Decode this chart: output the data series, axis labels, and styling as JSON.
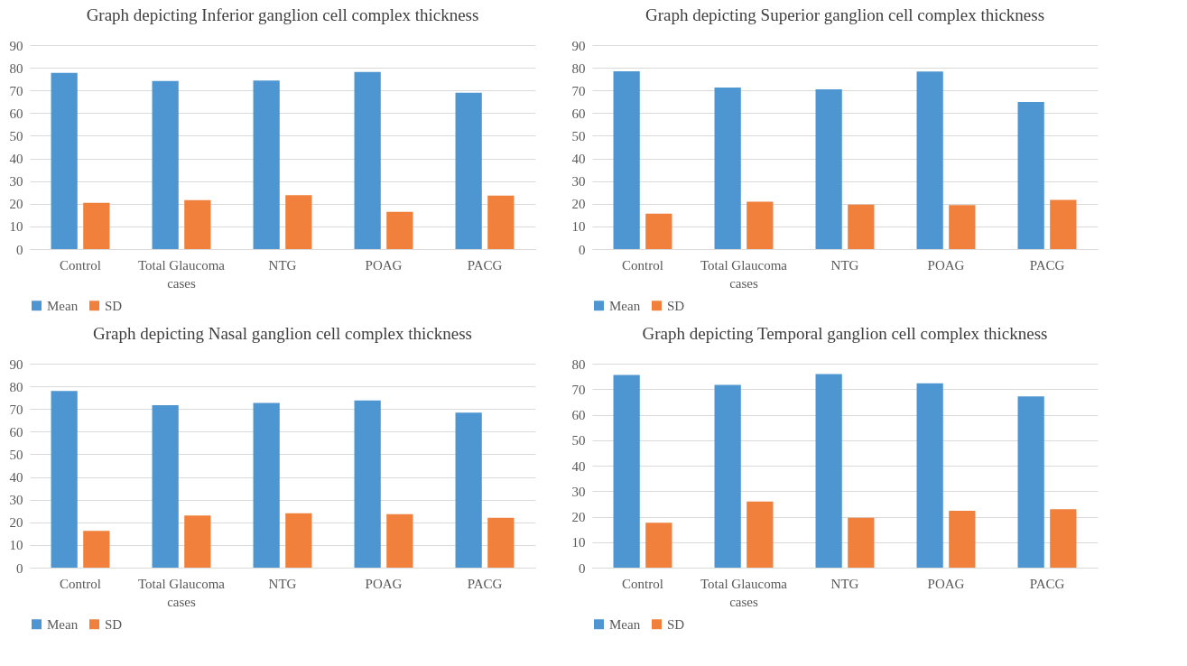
{
  "chart_data": [
    {
      "type": "bar",
      "title": "Graph depicting  Inferior ganglion cell complex thickness",
      "categories": [
        "Control",
        "Total Glaucoma cases",
        "NTG",
        "POAG",
        "PACG"
      ],
      "series": [
        {
          "name": "Mean",
          "color": "#4e96d1",
          "values": [
            77.8,
            74.2,
            74.4,
            78.2,
            69.0
          ]
        },
        {
          "name": "SD",
          "color": "#f0803c",
          "values": [
            20.4,
            21.6,
            23.8,
            16.4,
            23.6
          ]
        }
      ],
      "ylim": [
        0,
        90
      ],
      "yticks": [
        0,
        10,
        20,
        30,
        40,
        50,
        60,
        70,
        80,
        90
      ],
      "grid": "y",
      "legend": "bottom"
    },
    {
      "type": "bar",
      "title": "Graph depicting  Superior ganglion cell complex thickness",
      "categories": [
        "Control",
        "Total Glaucoma cases",
        "NTG",
        "POAG",
        "PACG"
      ],
      "series": [
        {
          "name": "Mean",
          "color": "#4e96d1",
          "values": [
            78.5,
            71.3,
            70.5,
            78.4,
            64.9
          ]
        },
        {
          "name": "SD",
          "color": "#f0803c",
          "values": [
            15.6,
            20.9,
            19.6,
            19.4,
            21.7
          ]
        }
      ],
      "ylim": [
        0,
        90
      ],
      "yticks": [
        0,
        10,
        20,
        30,
        40,
        50,
        60,
        70,
        80,
        90
      ],
      "grid": "y",
      "legend": "bottom"
    },
    {
      "type": "bar",
      "title": "Graph depicting  Nasal ganglion cell complex thickness",
      "categories": [
        "Control",
        "Total Glaucoma cases",
        "NTG",
        "POAG",
        "PACG"
      ],
      "series": [
        {
          "name": "Mean",
          "color": "#4e96d1",
          "values": [
            78.0,
            71.7,
            72.7,
            73.8,
            68.4
          ]
        },
        {
          "name": "SD",
          "color": "#f0803c",
          "values": [
            16.2,
            23.0,
            24.0,
            23.6,
            22.0
          ]
        }
      ],
      "ylim": [
        0,
        90
      ],
      "yticks": [
        0,
        10,
        20,
        30,
        40,
        50,
        60,
        70,
        80,
        90
      ],
      "grid": "y",
      "legend": "bottom"
    },
    {
      "type": "bar",
      "title": "Graph depicting  Temporal ganglion cell complex thickness",
      "categories": [
        "Control",
        "Total Glaucoma cases",
        "NTG",
        "POAG",
        "PACG"
      ],
      "series": [
        {
          "name": "Mean",
          "color": "#4e96d1",
          "values": [
            75.6,
            71.7,
            75.9,
            72.3,
            67.2
          ]
        },
        {
          "name": "SD",
          "color": "#f0803c",
          "values": [
            17.6,
            25.9,
            19.6,
            22.3,
            22.9
          ]
        }
      ],
      "ylim": [
        0,
        80
      ],
      "yticks": [
        0,
        10,
        20,
        30,
        40,
        50,
        60,
        70,
        80
      ],
      "grid": "y",
      "legend": "bottom"
    }
  ]
}
